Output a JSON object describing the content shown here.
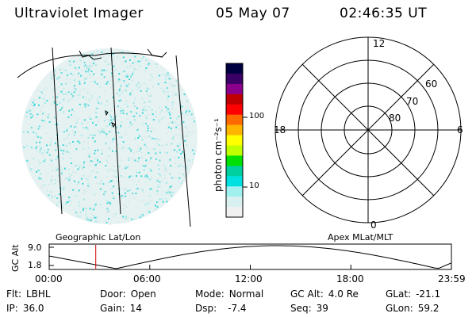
{
  "header": {
    "instrument": "Ultraviolet Imager",
    "date": "05 May 07",
    "time": "02:46:35 UT"
  },
  "colorbar": {
    "unit": "photon cm⁻²s⁻¹",
    "tick_100": "100",
    "tick_10": "10",
    "colors": [
      "#000040",
      "#3a0066",
      "#8b008b",
      "#c00000",
      "#ff0000",
      "#ff6a00",
      "#ffb400",
      "#ffff00",
      "#c0ff00",
      "#00e000",
      "#00d0a0",
      "#00e0e0",
      "#a0f0f0",
      "#d8f0f0",
      "#f0f0f0"
    ]
  },
  "geo_panel": {
    "label": "Geographic Lat/Lon"
  },
  "polar_panel": {
    "label": "Apex MLat/MLT",
    "mlt_top": "12",
    "mlt_left": "18",
    "mlt_right": "6",
    "mlt_bottom": "0",
    "lat_60": "60",
    "lat_70": "70",
    "lat_80": "80"
  },
  "altitude_panel": {
    "axis_label": "GC Alt",
    "y_max": "9.0",
    "y_min": "1.8",
    "x_ticks": [
      "00:00",
      "06:00",
      "12:00",
      "18:00",
      "23:59"
    ],
    "marker_hour": 2.78
  },
  "status": {
    "filter_label": "Flt:",
    "filter_value": "LBHL",
    "ip_label": "IP:",
    "ip_value": "36.0",
    "door_label": "Door:",
    "door_value": "Open",
    "gain_label": "Gain:",
    "gain_value": "14",
    "mode_label": "Mode:",
    "mode_value": "Normal",
    "dsp_label": "Dsp:",
    "dsp_value": "-7.4",
    "gcalt_label": "GC Alt:",
    "gcalt_value": "4.0 Re",
    "seq_label": "Seq:",
    "seq_value": "39",
    "glat_label": "GLat:",
    "glat_value": "-21.1",
    "glon_label": "GLon:",
    "glon_value": "59.2"
  }
}
